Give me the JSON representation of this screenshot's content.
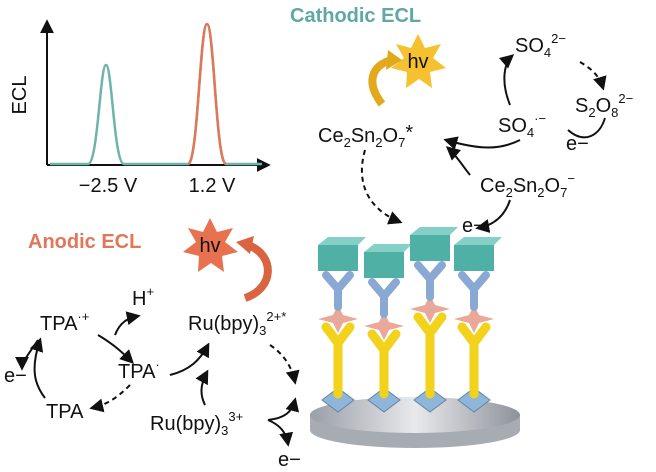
{
  "spectrum": {
    "y_label": "ECL",
    "peaks": [
      "−2.5 V",
      "1.2 V"
    ]
  },
  "cathodic": {
    "title": "Cathodic ECL",
    "hv": "hv",
    "sulfate": [
      "SO",
      "4",
      "2−"
    ],
    "persulfate": [
      "S",
      "2",
      "O",
      "8",
      "2−"
    ],
    "sulfate_radical": [
      "SO",
      "4",
      "·−"
    ],
    "electron_1": "e−",
    "excited": [
      "Ce",
      "2",
      "Sn",
      "2",
      "O",
      "7",
      "*"
    ],
    "reduced": [
      "Ce",
      "2",
      "Sn",
      "2",
      "O",
      "7",
      "−"
    ],
    "electron_2": "e−"
  },
  "anodic": {
    "title": "Anodic ECL",
    "hv": "hv",
    "tpa_cation": [
      "TPA",
      "·+"
    ],
    "proton": [
      "H",
      "+"
    ],
    "electron_1": "e−",
    "tpa_radical": [
      "TPA",
      "·"
    ],
    "tpa": "TPA",
    "ru_excited": [
      "Ru(bpy)",
      "3",
      "2+*"
    ],
    "ru_oxidized": [
      "Ru(bpy)",
      "3",
      "3+"
    ],
    "electron_2": "e−"
  }
}
